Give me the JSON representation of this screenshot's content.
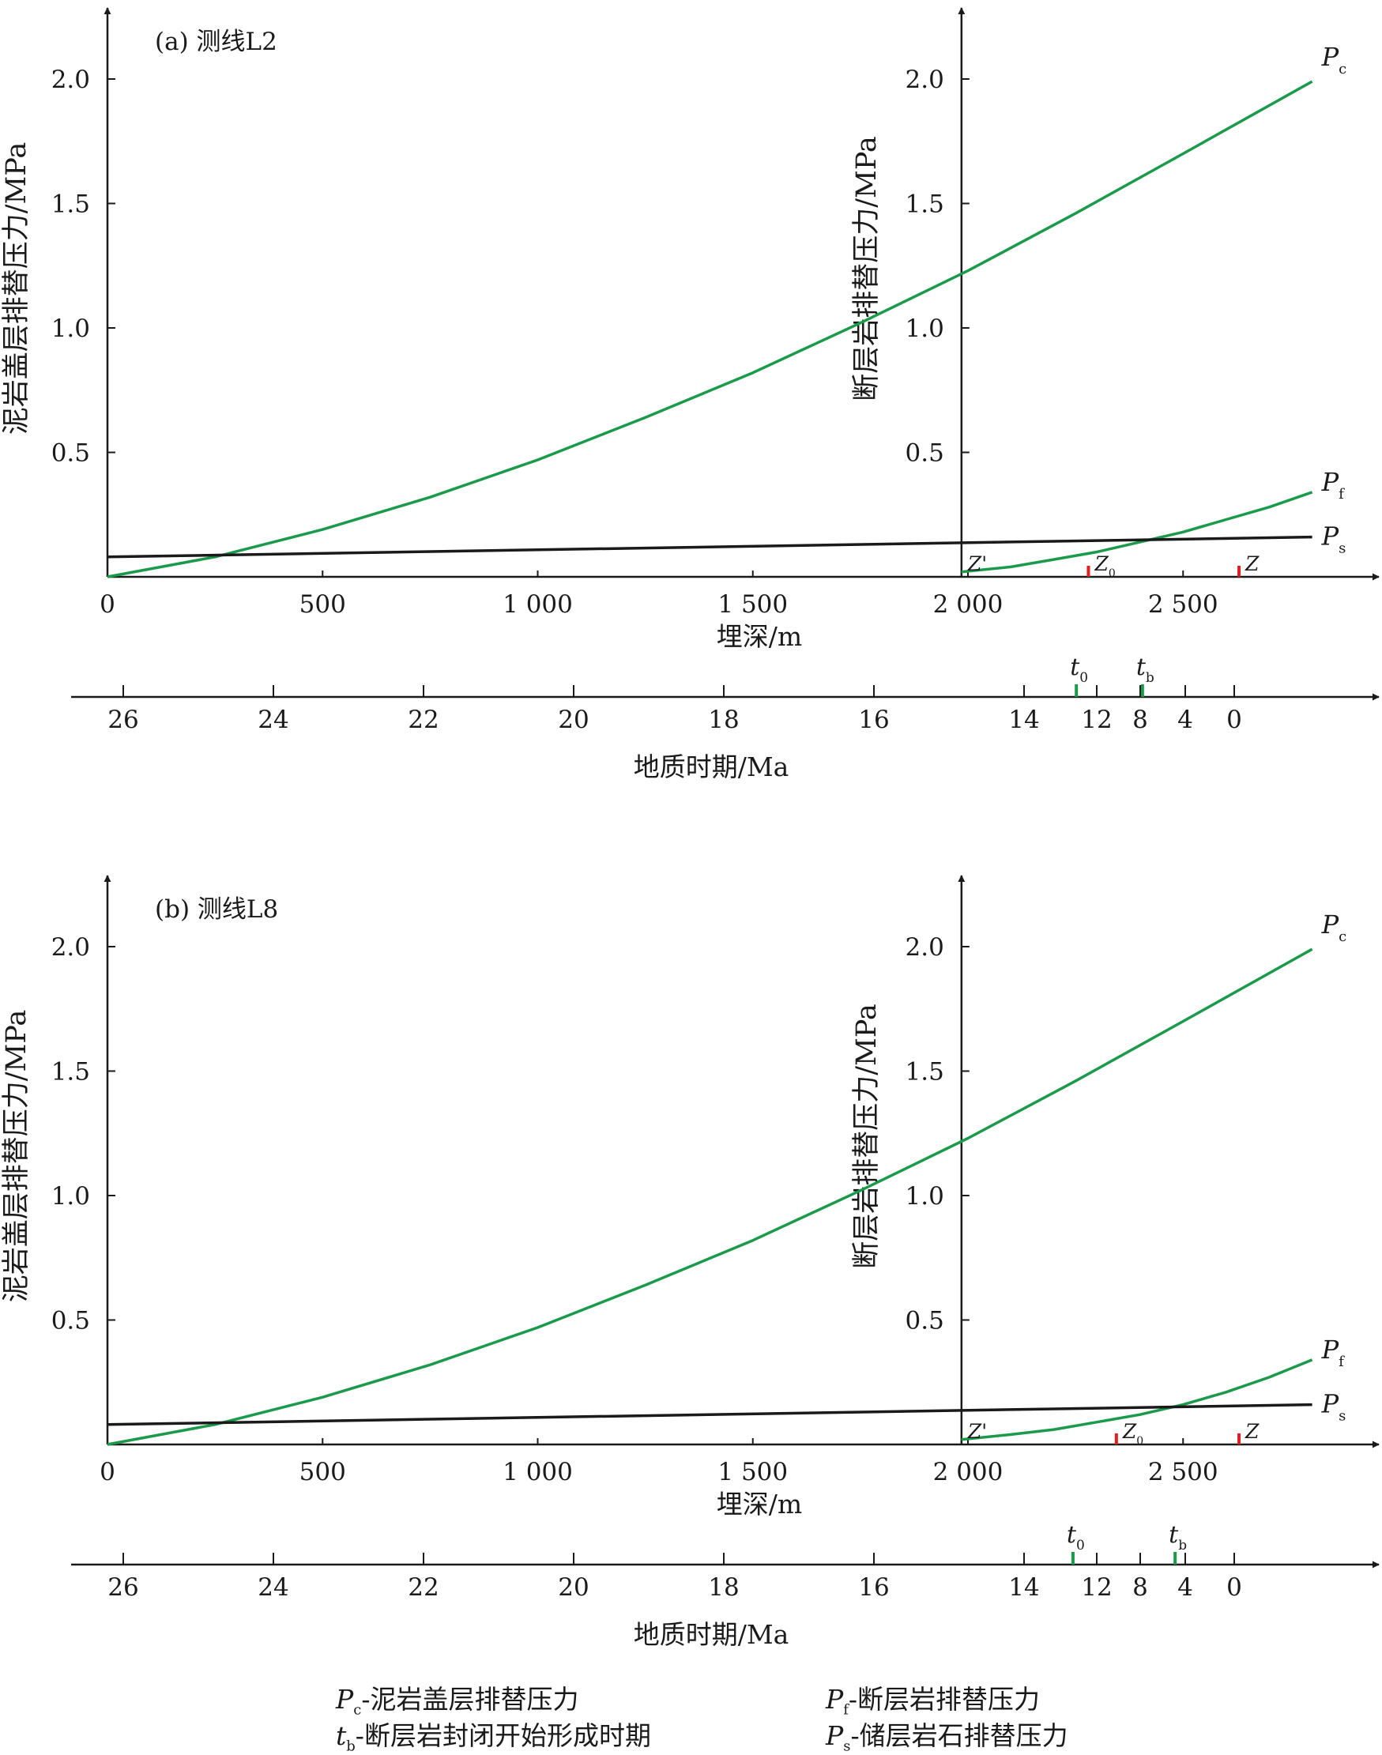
{
  "chart_data": [
    {
      "type": "line",
      "panel_label": "(a) 测线L2",
      "xlabel": "埋深/m",
      "ylabel_left": "泥岩盖层排替压力/MPa",
      "ylabel_right": "断层岩排替压力/MPa",
      "x_ticks": [
        0,
        500,
        1000,
        1500,
        2000,
        2500
      ],
      "x_tick_labels": [
        "0",
        "500",
        "1 000",
        "1 500",
        "2 000",
        "2 500"
      ],
      "y_ticks": [
        0.5,
        1.0,
        1.5,
        2.0
      ],
      "y_tick_labels": [
        "0.5",
        "1.0",
        "1.5",
        "2.0"
      ],
      "right_axis_x": 1985,
      "time_axis": {
        "label": "地质时期/Ma",
        "ticks": [
          26,
          24,
          22,
          20,
          18,
          16,
          14,
          12,
          8,
          4,
          0
        ],
        "tick_labels": [
          "26",
          "24",
          "22",
          "20",
          "18",
          "16",
          "14",
          "12",
          "8",
          "4",
          "0"
        ],
        "markers": [
          {
            "label": "t",
            "sub": "0",
            "value": 12.6
          },
          {
            "label": "t",
            "sub": "b",
            "value": 7.8
          }
        ]
      },
      "series": [
        {
          "name": "P",
          "sub": "c",
          "color": "#1a9a4a",
          "x": [
            0,
            250,
            500,
            750,
            1000,
            1250,
            1500,
            1750,
            2000,
            2250,
            2500,
            2800
          ],
          "y": [
            0.0,
            0.08,
            0.19,
            0.32,
            0.47,
            0.64,
            0.82,
            1.02,
            1.23,
            1.46,
            1.7,
            1.99
          ]
        },
        {
          "name": "P",
          "sub": "f",
          "color": "#1a9a4a",
          "x": [
            1985,
            2100,
            2200,
            2300,
            2400,
            2500,
            2600,
            2700,
            2800
          ],
          "y": [
            0.02,
            0.04,
            0.07,
            0.1,
            0.14,
            0.18,
            0.23,
            0.28,
            0.34
          ]
        },
        {
          "name": "P",
          "sub": "s",
          "color": "#1a1a1a",
          "x": [
            0,
            2800
          ],
          "y": [
            0.08,
            0.16
          ]
        }
      ],
      "depth_markers": [
        {
          "label": "Z'",
          "sub": "",
          "value": 1985,
          "color": "#1a1a1a"
        },
        {
          "label": "Z",
          "sub": "0",
          "value": 2280,
          "color": "#e02020"
        },
        {
          "label": "Z",
          "sub": "",
          "value": 2630,
          "color": "#e02020"
        }
      ]
    },
    {
      "type": "line",
      "panel_label": "(b) 测线L8",
      "xlabel": "埋深/m",
      "ylabel_left": "泥岩盖层排替压力/MPa",
      "ylabel_right": "断层岩排替压力/MPa",
      "x_ticks": [
        0,
        500,
        1000,
        1500,
        2000,
        2500
      ],
      "x_tick_labels": [
        "0",
        "500",
        "1 000",
        "1 500",
        "2 000",
        "2 500"
      ],
      "y_ticks": [
        0.5,
        1.0,
        1.5,
        2.0
      ],
      "y_tick_labels": [
        "0.5",
        "1.0",
        "1.5",
        "2.0"
      ],
      "right_axis_x": 1985,
      "time_axis": {
        "label": "地质时期/Ma",
        "ticks": [
          26,
          24,
          22,
          20,
          18,
          16,
          14,
          12,
          8,
          4,
          0
        ],
        "tick_labels": [
          "26",
          "24",
          "22",
          "20",
          "18",
          "16",
          "14",
          "12",
          "8",
          "4",
          "0"
        ],
        "markers": [
          {
            "label": "t",
            "sub": "0",
            "value": 12.7
          },
          {
            "label": "t",
            "sub": "b",
            "value": 4.9
          }
        ]
      },
      "series": [
        {
          "name": "P",
          "sub": "c",
          "color": "#1a9a4a",
          "x": [
            0,
            250,
            500,
            750,
            1000,
            1250,
            1500,
            1750,
            2000,
            2250,
            2500,
            2800
          ],
          "y": [
            0.0,
            0.08,
            0.19,
            0.32,
            0.47,
            0.64,
            0.82,
            1.02,
            1.23,
            1.46,
            1.7,
            1.99
          ]
        },
        {
          "name": "P",
          "sub": "f",
          "color": "#1a9a4a",
          "x": [
            1985,
            2100,
            2200,
            2300,
            2400,
            2500,
            2600,
            2700,
            2800
          ],
          "y": [
            0.02,
            0.04,
            0.06,
            0.09,
            0.12,
            0.16,
            0.21,
            0.27,
            0.34
          ]
        },
        {
          "name": "P",
          "sub": "s",
          "color": "#1a1a1a",
          "x": [
            0,
            2800
          ],
          "y": [
            0.08,
            0.16
          ]
        }
      ],
      "depth_markers": [
        {
          "label": "Z'",
          "sub": "",
          "value": 1985,
          "color": "#1a1a1a"
        },
        {
          "label": "Z",
          "sub": "0",
          "value": 2345,
          "color": "#e02020"
        },
        {
          "label": "Z",
          "sub": "",
          "value": 2630,
          "color": "#e02020"
        }
      ]
    }
  ],
  "legend": [
    {
      "sym": "P",
      "sub": "c",
      "text": "-泥岩盖层排替压力"
    },
    {
      "sym": "P",
      "sub": "f",
      "text": "-断层岩排替压力"
    },
    {
      "sym": "t",
      "sub": "b",
      "text": "-断层岩封闭开始形成时期"
    },
    {
      "sym": "P",
      "sub": "s",
      "text": "-储层岩石排替压力"
    }
  ]
}
